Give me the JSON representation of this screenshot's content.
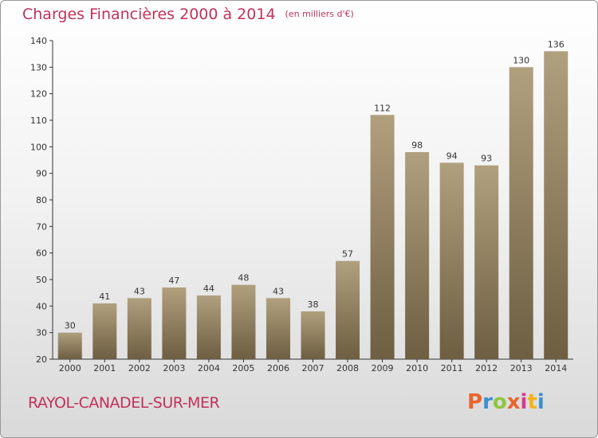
{
  "title": "Charges Financières 2000 à 2014",
  "subtitle": "(en milliers d'€)",
  "commune": "RAYOL-CANADEL-SUR-MER",
  "logo": {
    "text": "Proxiti",
    "colors": [
      "#e8642c",
      "#3a8fd0",
      "#8cc63f",
      "#e8642c",
      "#d43a8c",
      "#f2b318",
      "#3a8fd0"
    ]
  },
  "colors": {
    "title": "#c0325a",
    "bar_light": "#b0a07e",
    "bar_dark": "#6e5e42"
  },
  "chart_data": {
    "type": "bar",
    "categories": [
      "2000",
      "2001",
      "2002",
      "2003",
      "2004",
      "2005",
      "2006",
      "2007",
      "2008",
      "2009",
      "2010",
      "2011",
      "2012",
      "2013",
      "2014"
    ],
    "values": [
      30,
      41,
      43,
      47,
      44,
      48,
      43,
      38,
      57,
      112,
      98,
      94,
      93,
      130,
      136
    ],
    "ylim": [
      20,
      140
    ],
    "yticks": [
      20,
      30,
      40,
      50,
      60,
      70,
      80,
      90,
      100,
      110,
      120,
      130,
      140
    ],
    "grid": false,
    "data_labels": true
  }
}
